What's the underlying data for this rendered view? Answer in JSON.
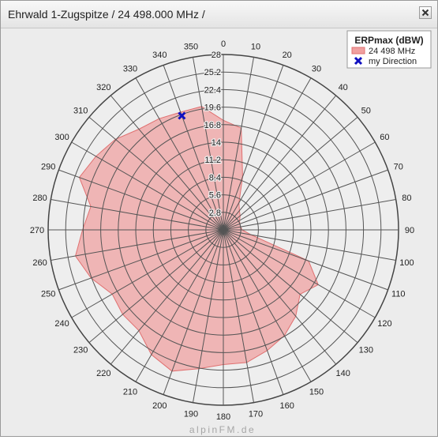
{
  "window": {
    "title": "Ehrwald 1-Zugspitze / 24 498.000 MHz /",
    "close_icon": "close-icon"
  },
  "watermark": "alpinFM.de",
  "chart_data": {
    "type": "polar-area",
    "title": "",
    "legend": {
      "title": "ERPmax (dBW)",
      "placement": "top-right",
      "items": [
        {
          "label": "24 498 MHz",
          "color": "#f0a0a0"
        },
        {
          "label": "my Direction",
          "color": "#1010c0",
          "marker": "x"
        }
      ]
    },
    "radial_axis": {
      "min": 0,
      "max": 28,
      "ticks": [
        2.8,
        5.6,
        8.4,
        11.2,
        14,
        16.8,
        19.6,
        22.4,
        25.2,
        28
      ],
      "tick_labels": [
        "2.8",
        "5.6",
        "8.4",
        "11.2",
        "14",
        "16.8",
        "19.6",
        "22.4",
        "25.2",
        "28"
      ]
    },
    "angular_axis": {
      "unit": "deg",
      "direction": "clockwise",
      "zero": "top",
      "ticks": [
        0,
        10,
        20,
        30,
        40,
        50,
        60,
        70,
        80,
        90,
        100,
        110,
        120,
        130,
        140,
        150,
        160,
        170,
        180,
        190,
        200,
        210,
        220,
        230,
        240,
        250,
        260,
        270,
        280,
        290,
        300,
        310,
        320,
        330,
        340,
        350
      ],
      "tick_labels": [
        "0",
        "10",
        "20",
        "30",
        "40",
        "50",
        "60",
        "70",
        "80",
        "90",
        "100",
        "110",
        "120",
        "130",
        "140",
        "150",
        "160",
        "170",
        "180",
        "190",
        "200",
        "210",
        "220",
        "230",
        "240",
        "250",
        "260",
        "270",
        "280",
        "290",
        "300",
        "310",
        "320",
        "330",
        "340",
        "350"
      ]
    },
    "series": [
      {
        "name": "24 498 MHz",
        "color": "#f0a0a0",
        "angles": [
          0,
          10,
          20,
          30,
          40,
          50,
          60,
          70,
          80,
          90,
          100,
          110,
          120,
          130,
          140,
          150,
          160,
          170,
          180,
          190,
          200,
          210,
          220,
          230,
          240,
          250,
          260,
          270,
          280,
          290,
          300,
          310,
          320,
          330,
          340,
          350
        ],
        "values": [
          17.5,
          16.5,
          9,
          5,
          4,
          3.5,
          3,
          2.8,
          2.8,
          3,
          4.5,
          14.5,
          17.5,
          16,
          18,
          19.5,
          20.5,
          21.5,
          21.5,
          22.5,
          24,
          23,
          21,
          21,
          20.5,
          22.5,
          24,
          22.5,
          21.5,
          24.5,
          23.5,
          22.5,
          21,
          20.5,
          20,
          20
        ]
      }
    ],
    "marker": {
      "name": "my Direction",
      "angle": 340,
      "value": 19.4,
      "color": "#1010c0"
    }
  }
}
